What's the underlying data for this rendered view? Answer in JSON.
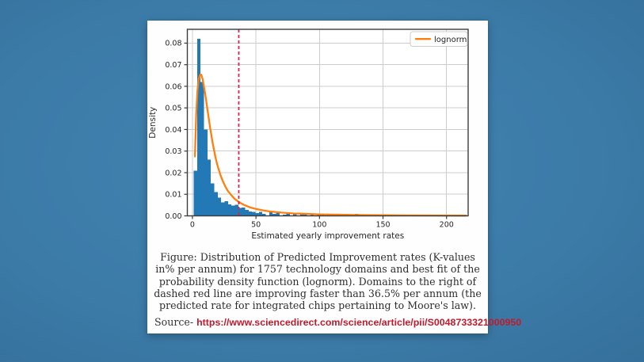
{
  "page": {
    "background_color": "#3d7dab",
    "card_background": "#fefefe"
  },
  "chart_data": {
    "type": "bar",
    "subtype": "histogram-with-fit",
    "title": "",
    "xlabel": "Estimated yearly improvement rates",
    "ylabel": "Density",
    "xlim": [
      -4,
      217
    ],
    "ylim": [
      0,
      0.0864
    ],
    "xticks": [
      0,
      50,
      100,
      150,
      200
    ],
    "yticks": [
      0,
      0.01,
      0.02,
      0.03,
      0.04,
      0.05,
      0.06,
      0.07,
      0.08
    ],
    "grid": true,
    "legend": {
      "label": "lognorm",
      "position": "upper right"
    },
    "colors": {
      "bars": "#2279b5",
      "fit_line": "#ff7f0e",
      "threshold_line": "#d8254e",
      "grid": "#cccccc",
      "spine": "#3c3c3c",
      "tick_text": "#262626"
    },
    "bin_width": 2.7,
    "bins": [
      [
        1.0,
        0.021
      ],
      [
        3.7,
        0.082
      ],
      [
        6.4,
        0.062
      ],
      [
        9.1,
        0.04
      ],
      [
        11.8,
        0.026
      ],
      [
        14.5,
        0.015
      ],
      [
        17.2,
        0.011
      ],
      [
        19.9,
        0.0085
      ],
      [
        22.6,
        0.0063
      ],
      [
        25.3,
        0.0067
      ],
      [
        28.0,
        0.0054
      ],
      [
        30.7,
        0.0048
      ],
      [
        33.4,
        0.0052
      ],
      [
        36.1,
        0.0036
      ],
      [
        38.8,
        0.0038
      ],
      [
        41.5,
        0.0027
      ],
      [
        44.2,
        0.0021
      ],
      [
        46.9,
        0.0018
      ],
      [
        49.6,
        0.0012
      ],
      [
        52.3,
        0.0019
      ],
      [
        55.0,
        0.001
      ],
      [
        60.4,
        0.0017
      ],
      [
        63.1,
        0.0009
      ],
      [
        65.8,
        0.0012
      ],
      [
        71.2,
        0.0006
      ],
      [
        73.9,
        0.001
      ],
      [
        79.3,
        0.0012
      ],
      [
        84.7,
        0.0007
      ],
      [
        87.4,
        0.0012
      ],
      [
        92.8,
        0.0008
      ],
      [
        98.2,
        0.0009
      ],
      [
        100.9,
        0.0008
      ],
      [
        106.3,
        0.0004
      ],
      [
        114.4,
        0.0005
      ],
      [
        119.8,
        0.001
      ],
      [
        127.9,
        0.001
      ],
      [
        133.3,
        0.0004
      ],
      [
        141.4,
        0.0003
      ],
      [
        149.5,
        0.0003
      ],
      [
        157.6,
        0.0004
      ],
      [
        165.0,
        0.0006
      ],
      [
        173.1,
        0.0006
      ],
      [
        181.2,
        0.0003
      ],
      [
        189.3,
        0.0003
      ],
      [
        200.4,
        0.0005
      ],
      [
        208.5,
        0.0004
      ],
      [
        212.9,
        0.0005
      ]
    ],
    "fit_line": {
      "name": "lognorm",
      "points": [
        [
          2,
          0.0275
        ],
        [
          3,
          0.047
        ],
        [
          4,
          0.058
        ],
        [
          5,
          0.0635
        ],
        [
          6,
          0.0652
        ],
        [
          6.5,
          0.0655
        ],
        [
          7,
          0.0653
        ],
        [
          8,
          0.0635
        ],
        [
          9,
          0.06
        ],
        [
          10,
          0.0565
        ],
        [
          11,
          0.0525
        ],
        [
          12,
          0.0485
        ],
        [
          13,
          0.0445
        ],
        [
          14,
          0.0405
        ],
        [
          15,
          0.037
        ],
        [
          16,
          0.0335
        ],
        [
          17,
          0.0305
        ],
        [
          18,
          0.0275
        ],
        [
          19,
          0.025
        ],
        [
          20,
          0.0228
        ],
        [
          22,
          0.019
        ],
        [
          24,
          0.016
        ],
        [
          26,
          0.0135
        ],
        [
          28,
          0.0115
        ],
        [
          30,
          0.01
        ],
        [
          33,
          0.008
        ],
        [
          36,
          0.0066
        ],
        [
          40,
          0.0052
        ],
        [
          45,
          0.004
        ],
        [
          50,
          0.0032
        ],
        [
          55,
          0.0026
        ],
        [
          60,
          0.0021
        ],
        [
          70,
          0.0015
        ],
        [
          80,
          0.0011
        ],
        [
          90,
          0.0009
        ],
        [
          100,
          0.0007
        ],
        [
          115,
          0.00055
        ],
        [
          130,
          0.00042
        ],
        [
          150,
          0.0003
        ],
        [
          170,
          0.00022
        ],
        [
          190,
          0.00017
        ],
        [
          215,
          0.00012
        ]
      ]
    },
    "threshold_line": {
      "x": 36.5,
      "style": "dashed"
    }
  },
  "caption": {
    "text": "Figure: Distribution of Predicted Improvement rates (K-values in% per annum) for 1757 technology domains and best fit of the probability density function (lognorm). Domains to the right of dashed red line are improving faster than 36.5% per annum (the predicted rate for integrated chips pertaining to Moore's law)."
  },
  "source": {
    "label": "Source- ",
    "url": "https://www.sciencedirect.com/science/article/pii/S0048733321000950",
    "color": "#c11a2d"
  }
}
